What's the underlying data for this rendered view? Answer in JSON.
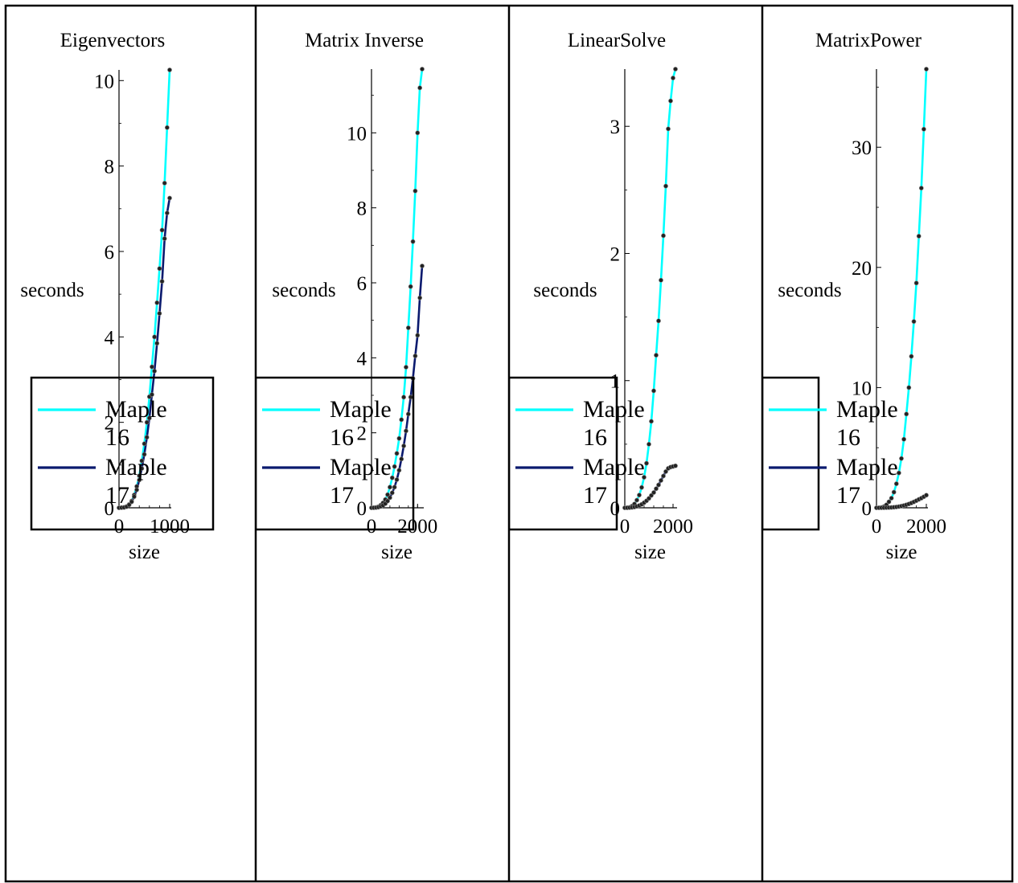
{
  "colors": {
    "maple16": "#00ffff",
    "maple17": "#0a1a6e",
    "marker": "#222222",
    "frame": "#000000"
  },
  "legend_labels": [
    "Maple 16",
    "Maple 17"
  ],
  "chart_data": [
    {
      "type": "line",
      "title": "Eigenvectors",
      "xlabel": "size",
      "ylabel": "seconds",
      "xlim": [
        0,
        1000
      ],
      "ylim": [
        0,
        10.25
      ],
      "xticks": [
        0,
        1000
      ],
      "yticks": [
        0,
        2,
        4,
        6,
        8,
        10
      ],
      "x": [
        0,
        50,
        100,
        150,
        200,
        250,
        300,
        350,
        400,
        450,
        500,
        550,
        600,
        650,
        700,
        750,
        800,
        850,
        900,
        950,
        1000
      ],
      "series": [
        {
          "name": "Maple 16",
          "values": [
            0,
            0.004,
            0.01,
            0.03,
            0.08,
            0.16,
            0.3,
            0.5,
            0.75,
            1.1,
            1.5,
            2.0,
            2.6,
            3.3,
            4.0,
            4.8,
            5.6,
            6.5,
            7.6,
            8.9,
            10.25
          ]
        },
        {
          "name": "Maple 17",
          "values": [
            0,
            0.003,
            0.008,
            0.025,
            0.07,
            0.14,
            0.26,
            0.42,
            0.65,
            0.92,
            1.25,
            1.65,
            2.1,
            2.65,
            3.2,
            3.85,
            4.55,
            5.3,
            6.3,
            6.9,
            7.25
          ]
        }
      ],
      "legend": {
        "position": "bottom-left",
        "entries": [
          "Maple 16",
          "Maple 17"
        ]
      }
    },
    {
      "type": "line",
      "title": "Matrix Inverse",
      "xlabel": "size",
      "ylabel": "seconds",
      "xlim": [
        0,
        2200
      ],
      "ylim": [
        0,
        11.7
      ],
      "xticks": [
        0,
        2000
      ],
      "yticks": [
        0,
        2,
        4,
        6,
        8,
        10
      ],
      "x": [
        0,
        100,
        200,
        300,
        400,
        500,
        600,
        700,
        800,
        900,
        1000,
        1100,
        1200,
        1300,
        1400,
        1500,
        1600,
        1700,
        1800,
        1900,
        2000,
        2100,
        2200
      ],
      "series": [
        {
          "name": "Maple 16",
          "values": [
            0,
            0.002,
            0.01,
            0.03,
            0.07,
            0.13,
            0.22,
            0.35,
            0.55,
            0.8,
            1.1,
            1.45,
            1.85,
            2.35,
            2.95,
            3.75,
            4.8,
            5.9,
            7.1,
            8.45,
            10.0,
            11.2,
            11.7
          ]
        },
        {
          "name": "Maple 17",
          "values": [
            0,
            0.001,
            0.005,
            0.015,
            0.035,
            0.065,
            0.11,
            0.18,
            0.27,
            0.4,
            0.55,
            0.75,
            1.0,
            1.3,
            1.65,
            2.05,
            2.5,
            2.95,
            3.45,
            4.05,
            4.6,
            5.6,
            6.45
          ]
        }
      ],
      "legend": {
        "position": "bottom-left",
        "entries": [
          "Maple 16",
          "Maple 17"
        ]
      }
    },
    {
      "type": "line",
      "title": "LinearSolve",
      "xlabel": "size",
      "ylabel": "seconds",
      "xlim": [
        0,
        2100
      ],
      "ylim": [
        0,
        3.45
      ],
      "xticks": [
        0,
        2000
      ],
      "yticks": [
        0,
        1,
        2,
        3
      ],
      "x": [
        0,
        100,
        200,
        300,
        400,
        500,
        600,
        700,
        800,
        900,
        1000,
        1100,
        1200,
        1300,
        1400,
        1500,
        1600,
        1700,
        1800,
        1900,
        2000,
        2100
      ],
      "series": [
        {
          "name": "Maple 16",
          "values": [
            0,
            0.0005,
            0.004,
            0.013,
            0.03,
            0.06,
            0.1,
            0.16,
            0.24,
            0.35,
            0.5,
            0.68,
            0.92,
            1.2,
            1.47,
            1.79,
            2.14,
            2.53,
            2.98,
            3.2,
            3.38,
            3.45
          ]
        },
        {
          "name": "Maple 17",
          "values": [
            0,
            0.0001,
            0.0008,
            0.003,
            0.006,
            0.011,
            0.018,
            0.027,
            0.04,
            0.055,
            0.074,
            0.097,
            0.12,
            0.15,
            0.18,
            0.215,
            0.25,
            0.285,
            0.31,
            0.32,
            0.325,
            0.33
          ]
        }
      ],
      "legend": {
        "position": "bottom-left",
        "entries": [
          "Maple 16",
          "Maple 17"
        ]
      }
    },
    {
      "type": "line",
      "title": "MatrixPower",
      "xlabel": "size",
      "ylabel": "seconds",
      "xlim": [
        0,
        2000
      ],
      "ylim": [
        0,
        36.5
      ],
      "xticks": [
        0,
        2000
      ],
      "yticks": [
        0,
        10,
        20,
        30
      ],
      "x": [
        0,
        100,
        200,
        300,
        400,
        500,
        600,
        700,
        800,
        900,
        1000,
        1100,
        1200,
        1300,
        1400,
        1500,
        1600,
        1700,
        1800,
        1900,
        2000
      ],
      "series": [
        {
          "name": "Maple 16",
          "values": [
            0,
            0.004,
            0.03,
            0.1,
            0.25,
            0.5,
            0.8,
            1.3,
            2.0,
            2.9,
            4.1,
            5.7,
            7.8,
            10.0,
            12.6,
            15.5,
            18.7,
            22.6,
            26.6,
            31.5,
            36.5
          ]
        },
        {
          "name": "Maple 17",
          "values": [
            0,
            0.0001,
            0.001,
            0.003,
            0.008,
            0.016,
            0.028,
            0.045,
            0.068,
            0.1,
            0.14,
            0.19,
            0.25,
            0.32,
            0.4,
            0.49,
            0.59,
            0.7,
            0.8,
            0.92,
            1.05
          ]
        }
      ],
      "legend": {
        "position": "bottom-left",
        "entries": [
          "Maple 16",
          "Maple 17"
        ]
      }
    }
  ]
}
